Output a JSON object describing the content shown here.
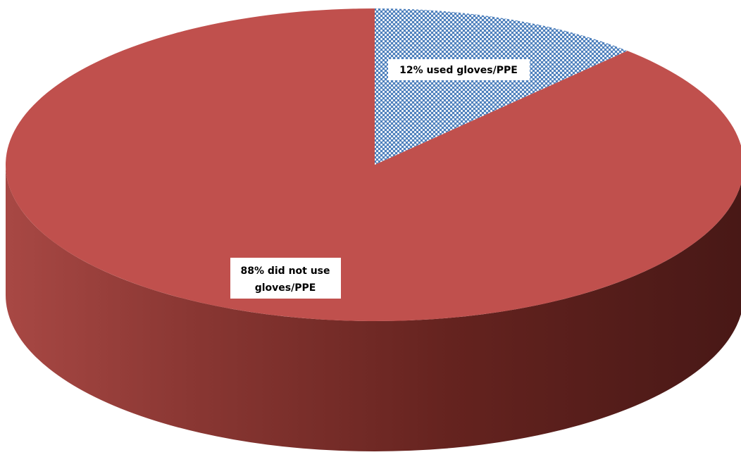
{
  "chart_data": {
    "type": "pie",
    "style": "3d",
    "title": "",
    "slices": [
      {
        "label": "12% used gloves/PPE",
        "value": 12,
        "color": "#4f81bd",
        "pattern": "dotted"
      },
      {
        "label": "88% did  not use gloves/PPE",
        "label_lines": [
          "88% did  not use",
          "gloves/PPE"
        ],
        "value": 88,
        "color": "#c0504d"
      }
    ],
    "start_angle": "12 o'clock",
    "direction": "clockwise"
  }
}
